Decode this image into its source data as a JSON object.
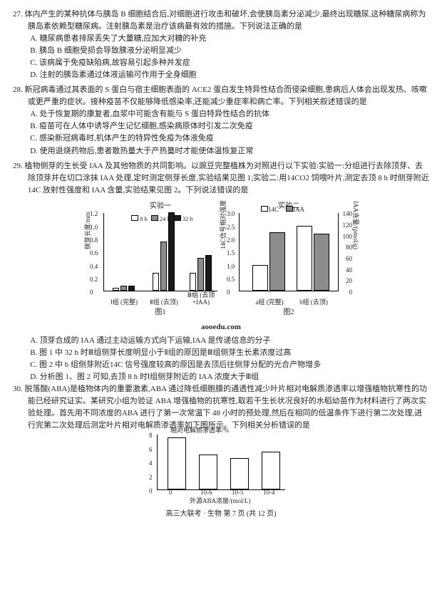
{
  "q27": {
    "stem": "27. 体内产生的某种抗体与胰岛 B 细胞结合后,对细胞进行攻击和破坏,会使胰岛素分泌减少,最终出现糖尿,这种糖尿病称为胰岛素依赖型糖尿病。注射胰岛素是治疗该病最有效的措施。下列说法正确的是",
    "A": "A. 糖尿病患者排尿丢失了大量糖,应加大对糖的补充",
    "B": "B. 胰岛 B 细胞受损会导致胰液分泌明显减少",
    "C": "C. 该病属于免疫缺陷病,故容易引起多种并发症",
    "D": "D. 注射的胰岛素通过体液运输可作用于全身细胞"
  },
  "q28": {
    "stem": "28. 新冠病毒通过其表面的 S 蛋白与宿主细胞表面的 ACE2 蛋白发生特异性结合而侵染细胞,患病后人体会出现发热、咳嗽或更严重的症状。接种疫苗不仅能够降低感染率,还能减少重症率和病亡率。下列相关叙述错误的是",
    "A": "A. 处于恢复期的康复者,血浆中可能含有能与 S 蛋白特异性结合的抗体",
    "B": "B. 疫苗可在人体中诱导产生记忆细胞,感染病原体时引发二次免疫",
    "C": "C. 感染新冠病毒时,机体产生的特异性免疫为体液免疫",
    "D": "D. 使用退烧药物后,患者散热量大于产热量时才能使体温恢复正常"
  },
  "q29": {
    "stem": "29. 植物侧芽的生长受 IAA 及其他物质的共同影响。以豌豆完整植株为对照进行以下实验:实验一:分组进行去除顶芽、去除顶芽并在切口涂抹 IAA 处理,定时测定侧芽长度,实验结果见图 1;实验二:用14CO2 饲喂叶片,测定去顶 8 h 时侧芽附近14C 放射性强度和 IAA 含量,实验结果见图 2。下列说法错误的是",
    "A": "A. 顶芽合成的 IAA 通过主动运输方式向下运输,IAA 是传递信息的分子",
    "B": "B. 图 1 中 32 h 时Ⅲ组侧芽长度明显小于Ⅱ组的原因是Ⅲ组侧芽生长素浓度过高",
    "C": "C. 图 2 中 b 组侧芽附近14C 信号强度较高的原因是去顶后往侧芽分配的光合产物增多",
    "D": "D. 分析图 1、图 2 可知,去顶 8 h 时Ⅰ组侧芽附近的 IAA 浓度大于Ⅲ组"
  },
  "q30": {
    "stem": "30. 脱落酸(ABA)是植物体内的重要激素,ABA 通过降低细胞膜的通透性减少叶片相对电解质渗透率以增强植物抗寒性的功能已经研究证实。某研究小组为验证 ABA 增强植物的抗寒性,取若干生长状况良好的水稻幼苗作为材料进行了两次实验处理。首先用不同浓度的ABA 进行了第一次常温下 48 小时的预处理,然后在相同的低温条件下进行第二次处理,进行完第二次处理后测定叶片相对电解质渗透率如下图所示。下列相关分析错误的是"
  },
  "fig1": {
    "title": "实验一",
    "ylabel": "侧芽长度/mm",
    "yticks": [
      "0",
      "0.2",
      "0.4",
      "0.6",
      "0.8",
      "1.0",
      "1.2"
    ],
    "legend": [
      "8 h",
      "24 h",
      "32 h"
    ],
    "legend_colors": [
      "#ffffff",
      "#8c8c8c",
      "#1a1a1a"
    ],
    "groups": [
      "Ⅰ组\n(完整)",
      "Ⅱ组\n(去顶)",
      "Ⅲ组\n(去顶+IAA)"
    ],
    "values": [
      [
        0.05,
        0.08,
        0.08
      ],
      [
        0.28,
        0.75,
        1.2
      ],
      [
        0.28,
        0.5,
        0.55
      ]
    ],
    "caption": "图1"
  },
  "fig2": {
    "title": "实验二",
    "ylabel_left": "14C信号相对强度",
    "ylabel_right": "IAA含量/(pmol/g)",
    "yticks_left": [
      "0",
      "0.5",
      "1.0",
      "1.5",
      "2.0",
      "2.5",
      "3.0"
    ],
    "yticks_right": [
      "0",
      "20",
      "40",
      "60",
      "80",
      "100",
      "120",
      "140"
    ],
    "legend": [
      "14C",
      "IAA"
    ],
    "legend_colors": [
      "#ffffff",
      "#8c8c8c"
    ],
    "groups": [
      "a组\n(完整)",
      "b组\n(去顶)"
    ],
    "c14": [
      1.0,
      2.5
    ],
    "iaa": [
      105,
      102
    ],
    "caption": "图2"
  },
  "watermark": "aooedu.com",
  "fig3": {
    "title": "相对电解质渗透率/%",
    "yticks": [
      "0",
      "2",
      "4",
      "6",
      "8"
    ],
    "xlabel": "外源ABA浓度/(mol/L)",
    "xcats": [
      "0",
      "10-6",
      "10-5",
      "10-4"
    ],
    "values": [
      7.5,
      5.0,
      4.5,
      5.5
    ],
    "bar_color": "#ffffff"
  },
  "footer": "高三大联考 · 生物 第 7 页 (共 12 页)"
}
